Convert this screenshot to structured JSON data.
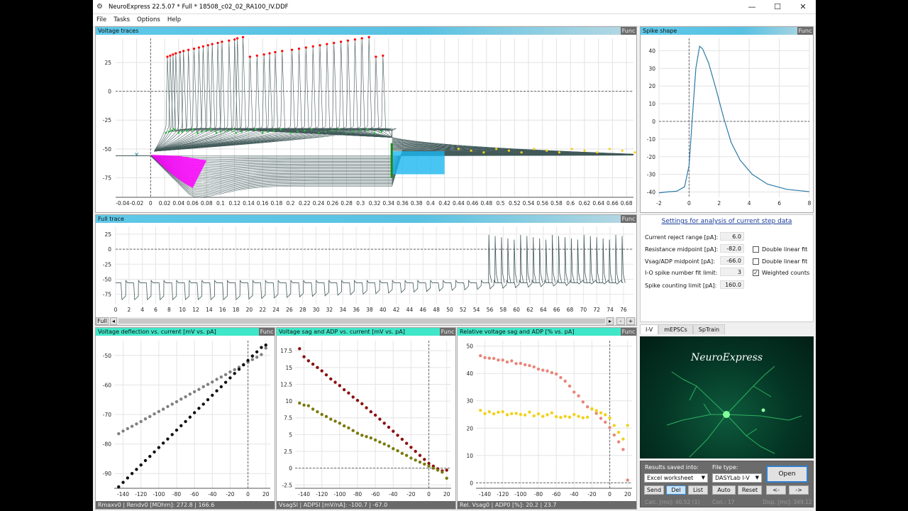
{
  "window": {
    "title": "NeuroExpress 22.5.07 * Full * 18508_c02_02_RA100_IV.DDF",
    "min": "—",
    "max": "☐",
    "close": "✕"
  },
  "menu": [
    "File",
    "Tasks",
    "Options",
    "Help"
  ],
  "voltage_traces": {
    "title": "Voltage traces",
    "func": "Func",
    "yticks": [
      "25",
      "0",
      "-25",
      "-50",
      "-75"
    ],
    "xticks": [
      "-0.04",
      "-0.02",
      "0",
      "0.02",
      "0.04",
      "0.06",
      "0.08",
      "0.1",
      "0.12",
      "0.14",
      "0.16",
      "0.18",
      "0.2",
      "0.22",
      "0.24",
      "0.26",
      "0.28",
      "0.3",
      "0.32",
      "0.34",
      "0.36",
      "0.38",
      "0.4",
      "0.42",
      "0.44",
      "0.46",
      "0.48",
      "0.5",
      "0.52",
      "0.54",
      "0.56",
      "0.58",
      "0.6",
      "0.62",
      "0.64",
      "0.66",
      "0.68"
    ]
  },
  "spike_shape": {
    "title": "Spike shape",
    "func": "Func",
    "yticks": [
      "40",
      "30",
      "20",
      "10",
      "0",
      "-10",
      "-20",
      "-30",
      "-40"
    ],
    "xticks": [
      "-2",
      "0",
      "2",
      "4",
      "6",
      "8"
    ]
  },
  "full_trace": {
    "title": "Full trace",
    "func": "Func",
    "yticks": [
      "25",
      "0",
      "-25",
      "-50",
      "-75"
    ],
    "xticks": [
      "0",
      "2",
      "4",
      "6",
      "8",
      "10",
      "12",
      "14",
      "16",
      "18",
      "20",
      "22",
      "24",
      "26",
      "28",
      "30",
      "32",
      "34",
      "36",
      "38",
      "40",
      "42",
      "44",
      "46",
      "48",
      "50",
      "52",
      "54",
      "56",
      "58",
      "60",
      "62",
      "64",
      "66",
      "68",
      "70",
      "72",
      "74",
      "76"
    ],
    "full_btn": "Full",
    "scroll_left": "◂",
    "scroll_right": "▸",
    "minus": "-",
    "plus": "+"
  },
  "settings": {
    "title": "Settings for analysis of current step data",
    "fields": [
      {
        "label": "Current reject range [pA]:",
        "value": "6.0"
      },
      {
        "label": "Resistance midpoint [pA]:",
        "value": "-82.0"
      },
      {
        "label": "Vsag/ADP midpoint [pA]:",
        "value": "-66.0"
      },
      {
        "label": "I-O spike number fit limit:",
        "value": "3"
      },
      {
        "label": "Spike counting limit [pA]:",
        "value": "160.0"
      }
    ],
    "checks": [
      {
        "label": "Double linear fit",
        "checked": false
      },
      {
        "label": "Double linear fit",
        "checked": false
      },
      {
        "label": "Weighted counts",
        "checked": true
      }
    ]
  },
  "tabs": [
    "I-V",
    "mEPSCs",
    "SpTrain"
  ],
  "logo": {
    "text": "NeuroExpress"
  },
  "results": {
    "saved_label": "Results saved into:",
    "saved_value": "Excel worksheet",
    "file_type_label": "File type:",
    "file_type_value": "DASYLab I-V",
    "open": "Open",
    "send": "Send",
    "del": "Del",
    "list": "List",
    "auto": "Auto",
    "reset": "Reset",
    "prev": "<-",
    "next": "->",
    "calc": "Calc. [ms]: 40.52  (1)",
    "con": "Con.: 17",
    "disp": "Disp. [ms]: 349.12"
  },
  "bottom_charts": [
    {
      "title": "Voltage deflection vs. current [mV vs. pA]",
      "func": "Func",
      "footer": "Rmaxv0 | Rendv0 [MOhm]: 272.8 | 166.6",
      "yticks": [
        "-50",
        "-60",
        "-70",
        "-80",
        "-90"
      ],
      "xticks": [
        "-140",
        "-120",
        "-100",
        "-80",
        "-60",
        "-40",
        "-20",
        "0",
        "20"
      ]
    },
    {
      "title": "Voltage sag and ADP vs. current [mV vs. pA]",
      "func": "Func",
      "footer": "VsagSl | ADPSl [mV/nA]: -100.7 | -67.0",
      "yticks": [
        "17.5",
        "15",
        "12.5",
        "10",
        "7.5",
        "5",
        "2.5",
        "0",
        "-2.5"
      ],
      "xticks": [
        "-140",
        "-120",
        "-100",
        "-80",
        "-60",
        "-40",
        "-20",
        "0",
        "20"
      ]
    },
    {
      "title": "Relative voltage sag and ADP [% vs. pA]",
      "func": "Func",
      "footer": "Rel. Vsag0 | ADP0 [%]: 20.2 | 23.7",
      "yticks": [
        "50",
        "40",
        "30",
        "20",
        "10",
        "0"
      ],
      "xticks": [
        "-140",
        "-120",
        "-100",
        "-80",
        "-60",
        "-40",
        "-20",
        "0",
        "20"
      ]
    }
  ],
  "chart_data": [
    {
      "type": "scatter",
      "title": "Voltage deflection vs. current [mV vs. pA]",
      "xlim": [
        -150,
        25
      ],
      "ylim": [
        -95,
        -45
      ],
      "series": [
        {
          "color": "#808080",
          "x": [
            -145,
            -140,
            -135,
            -130,
            -125,
            -120,
            -115,
            -110,
            -105,
            -100,
            -95,
            -90,
            -85,
            -80,
            -75,
            -70,
            -65,
            -60,
            -55,
            -50,
            -45,
            -40,
            -35,
            -30,
            -25,
            -20,
            -15,
            -10,
            -5,
            0,
            5,
            10,
            15,
            20
          ],
          "y": [
            -76.5,
            -75.6,
            -74.8,
            -74.0,
            -73.2,
            -72.4,
            -71.5,
            -70.7,
            -69.8,
            -69.0,
            -68.2,
            -67.3,
            -66.5,
            -65.7,
            -64.8,
            -64.0,
            -63.1,
            -62.3,
            -61.5,
            -60.6,
            -59.8,
            -59.0,
            -58.1,
            -57.3,
            -56.5,
            -55.6,
            -54.8,
            -54.0,
            -53.1,
            -52.3,
            -51.4,
            -50.6,
            -49.7,
            -47.5
          ]
        },
        {
          "color": "#111111",
          "x": [
            -145,
            -140,
            -135,
            -130,
            -125,
            -120,
            -115,
            -110,
            -105,
            -100,
            -95,
            -90,
            -85,
            -80,
            -75,
            -70,
            -65,
            -60,
            -55,
            -50,
            -45,
            -40,
            -35,
            -30,
            -25,
            -20,
            -15,
            -10,
            -5,
            0,
            5,
            10,
            15,
            20
          ],
          "y": [
            -94.5,
            -93.0,
            -91.5,
            -90.0,
            -88.6,
            -87.1,
            -85.6,
            -84.2,
            -82.7,
            -81.2,
            -79.7,
            -78.3,
            -76.8,
            -75.3,
            -73.8,
            -72.4,
            -70.9,
            -69.4,
            -67.9,
            -66.5,
            -65.0,
            -63.5,
            -62.0,
            -60.6,
            -59.1,
            -57.6,
            -56.1,
            -54.7,
            -53.2,
            -51.7,
            -50.2,
            -48.8,
            -47.3,
            -46.5
          ]
        }
      ]
    },
    {
      "type": "scatter",
      "title": "Voltage sag and ADP vs. current [mV vs. pA]",
      "xlim": [
        -150,
        25
      ],
      "ylim": [
        -3,
        19
      ],
      "series": [
        {
          "color": "#8b1010",
          "x": [
            -145,
            -140,
            -135,
            -130,
            -125,
            -120,
            -115,
            -110,
            -105,
            -100,
            -95,
            -90,
            -85,
            -80,
            -75,
            -70,
            -65,
            -60,
            -55,
            -50,
            -45,
            -40,
            -35,
            -30,
            -25,
            -20,
            -15,
            -10,
            -5,
            0,
            5,
            10,
            15,
            20
          ],
          "y": [
            17.8,
            16.6,
            16.0,
            15.5,
            15.0,
            14.5,
            13.9,
            13.3,
            12.8,
            12.3,
            11.7,
            11.2,
            10.6,
            10.1,
            9.6,
            9.0,
            8.4,
            7.9,
            7.3,
            6.7,
            6.1,
            5.5,
            4.9,
            4.3,
            3.7,
            3.1,
            2.5,
            1.9,
            1.3,
            0.7,
            0.3,
            -0.1,
            -0.4,
            -0.3
          ]
        },
        {
          "color": "#7a7a10",
          "x": [
            -145,
            -140,
            -135,
            -130,
            -125,
            -120,
            -115,
            -110,
            -105,
            -100,
            -95,
            -90,
            -85,
            -80,
            -75,
            -70,
            -65,
            -60,
            -55,
            -50,
            -45,
            -40,
            -35,
            -30,
            -25,
            -20,
            -15,
            -10,
            -5,
            0,
            5,
            10,
            15,
            20
          ],
          "y": [
            9.7,
            9.4,
            9.3,
            8.8,
            8.4,
            8.0,
            7.7,
            7.3,
            7.0,
            6.7,
            6.3,
            6.0,
            5.6,
            5.2,
            4.9,
            4.7,
            4.5,
            4.2,
            3.9,
            3.6,
            3.3,
            2.9,
            2.6,
            2.2,
            1.9,
            1.5,
            1.2,
            0.9,
            0.6,
            0.3,
            0.0,
            -0.3,
            -0.6,
            -1.5
          ]
        }
      ]
    },
    {
      "type": "scatter",
      "title": "Relative voltage sag and ADP [% vs. pA]",
      "xlim": [
        -150,
        25
      ],
      "ylim": [
        -2,
        52
      ],
      "series": [
        {
          "color": "#e8857a",
          "x": [
            -145,
            -140,
            -135,
            -130,
            -125,
            -120,
            -115,
            -110,
            -105,
            -100,
            -95,
            -90,
            -85,
            -80,
            -75,
            -70,
            -65,
            -60,
            -55,
            -50,
            -45,
            -40,
            -35,
            -30,
            -25,
            -20,
            -15,
            -10,
            -5,
            0,
            5,
            10,
            15,
            20
          ],
          "y": [
            46.5,
            45.8,
            45.6,
            45.5,
            44.9,
            44.9,
            44.2,
            44.6,
            43.6,
            43.7,
            43.2,
            42.9,
            42.4,
            41.6,
            41.2,
            40.9,
            40.3,
            39.8,
            38.5,
            37.2,
            35.4,
            33.2,
            31.8,
            29.6,
            27.8,
            27.0,
            25.4,
            23.6,
            22.2,
            20.2,
            17.5,
            15.0,
            12.2,
            1.0
          ]
        },
        {
          "color": "#f2d21b",
          "x": [
            -145,
            -140,
            -135,
            -130,
            -125,
            -120,
            -115,
            -110,
            -105,
            -100,
            -95,
            -90,
            -85,
            -80,
            -75,
            -70,
            -65,
            -60,
            -55,
            -50,
            -45,
            -40,
            -35,
            -30,
            -25,
            -20,
            -15,
            -10,
            -5,
            0,
            5,
            10,
            15,
            20
          ],
          "y": [
            26.5,
            25.3,
            26.0,
            25.2,
            25.8,
            26.0,
            24.9,
            25.3,
            25.4,
            25.0,
            24.8,
            25.9,
            24.5,
            25.2,
            24.3,
            24.9,
            25.6,
            24.2,
            23.9,
            24.3,
            24.0,
            25.0,
            24.3,
            23.8,
            24.0,
            27.1,
            26.4,
            25.6,
            24.9,
            23.7,
            21.0,
            18.5,
            16.0,
            21.0
          ]
        }
      ]
    }
  ],
  "colors": {
    "header_blue": "#5ec8e8",
    "header_teal": "#40e6c8",
    "trace": "#425a5a",
    "spike_peak": "#ff0000",
    "green_marks": "#22cc33",
    "magenta_marks": "#ff00ff",
    "cyan_marks": "#1ab6f0",
    "yellow_marks": "#f5d016",
    "logo_bg": "#003a2a"
  }
}
